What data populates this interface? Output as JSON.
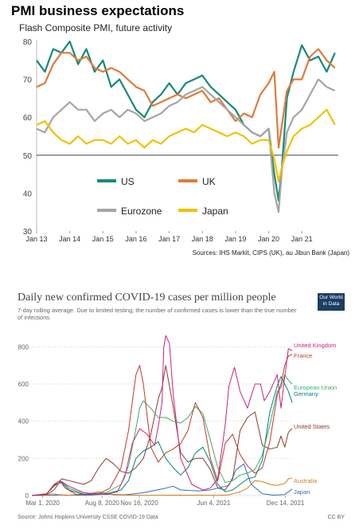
{
  "chart_data": [
    {
      "type": "line",
      "title": "PMI business expectations",
      "subtitle": "Flash Composite PMI, future activity",
      "ylim": [
        30,
        80
      ],
      "yticks": [
        30,
        40,
        50,
        60,
        70,
        80
      ],
      "xlim": [
        2013.0,
        2022.1
      ],
      "xtick_labels": [
        "Jan 13",
        "Jan 14",
        "Jan 15",
        "Jan 16",
        "Jan 17",
        "Jan 18",
        "Jan 19",
        "Jan 20",
        "Jan 21"
      ],
      "reference_line": 50,
      "grid": false,
      "legend_placement": "inside-bottom-left",
      "source": "Sources: IHS Markit, CIPS (UK), au Jibun Bank (Japan)",
      "series": [
        {
          "name": "US",
          "color": "#16897a",
          "x": [
            2013.0,
            2013.25,
            2013.5,
            2013.75,
            2014.0,
            2014.25,
            2014.5,
            2014.75,
            2015.0,
            2015.25,
            2015.5,
            2015.75,
            2016.0,
            2016.25,
            2016.5,
            2016.75,
            2017.0,
            2017.25,
            2017.5,
            2017.75,
            2018.0,
            2018.25,
            2018.5,
            2018.75,
            2019.0,
            2019.25,
            2019.5,
            2019.75,
            2020.0,
            2020.17,
            2020.3,
            2020.4,
            2020.55,
            2020.75,
            2021.0,
            2021.25,
            2021.5,
            2021.75,
            2022.0
          ],
          "y": [
            75,
            72,
            78,
            77,
            80,
            74,
            78,
            72,
            75,
            68,
            70,
            66,
            62,
            60,
            64,
            66,
            69,
            66,
            69,
            70,
            71,
            68,
            66,
            64,
            62,
            58,
            56,
            55,
            57,
            45,
            38,
            47,
            65,
            72,
            79,
            75,
            76,
            72,
            77
          ]
        },
        {
          "name": "UK",
          "color": "#e07b39",
          "x": [
            2013.0,
            2013.25,
            2013.5,
            2013.75,
            2014.0,
            2014.25,
            2014.5,
            2014.75,
            2015.0,
            2015.25,
            2015.5,
            2015.75,
            2016.0,
            2016.25,
            2016.5,
            2016.75,
            2017.0,
            2017.25,
            2017.5,
            2017.75,
            2018.0,
            2018.25,
            2018.5,
            2018.75,
            2019.0,
            2019.25,
            2019.5,
            2019.75,
            2020.0,
            2020.17,
            2020.3,
            2020.4,
            2020.55,
            2020.75,
            2021.0,
            2021.25,
            2021.5,
            2021.75,
            2022.0
          ],
          "y": [
            68,
            69,
            74,
            77,
            77,
            75,
            76,
            73,
            72,
            73,
            72,
            70,
            68,
            67,
            63,
            64,
            65,
            66,
            65,
            66,
            67,
            64,
            65,
            62,
            59,
            61,
            60,
            66,
            69,
            72,
            52,
            58,
            67,
            70,
            70,
            76,
            78,
            75,
            73
          ]
        },
        {
          "name": "Eurozone",
          "color": "#a5a5a5",
          "x": [
            2013.0,
            2013.25,
            2013.5,
            2013.75,
            2014.0,
            2014.25,
            2014.5,
            2014.75,
            2015.0,
            2015.25,
            2015.5,
            2015.75,
            2016.0,
            2016.25,
            2016.5,
            2016.75,
            2017.0,
            2017.25,
            2017.5,
            2017.75,
            2018.0,
            2018.25,
            2018.5,
            2018.75,
            2019.0,
            2019.25,
            2019.5,
            2019.75,
            2020.0,
            2020.17,
            2020.3,
            2020.4,
            2020.55,
            2020.75,
            2021.0,
            2021.25,
            2021.5,
            2021.75,
            2022.0
          ],
          "y": [
            57,
            56,
            60,
            62,
            64,
            62,
            62,
            59,
            61,
            62,
            60,
            62,
            61,
            59,
            60,
            61,
            63,
            64,
            66,
            67,
            68,
            66,
            64,
            62,
            60,
            58,
            56,
            55,
            57,
            40,
            35,
            46,
            56,
            60,
            62,
            66,
            70,
            68,
            67
          ]
        },
        {
          "name": "Japan",
          "color": "#f2c100",
          "x": [
            2013.0,
            2013.25,
            2013.5,
            2013.75,
            2014.0,
            2014.25,
            2014.5,
            2014.75,
            2015.0,
            2015.25,
            2015.5,
            2015.75,
            2016.0,
            2016.25,
            2016.5,
            2016.75,
            2017.0,
            2017.25,
            2017.5,
            2017.75,
            2018.0,
            2018.25,
            2018.5,
            2018.75,
            2019.0,
            2019.25,
            2019.5,
            2019.75,
            2020.0,
            2020.17,
            2020.3,
            2020.4,
            2020.55,
            2020.75,
            2021.0,
            2021.25,
            2021.5,
            2021.75,
            2022.0
          ],
          "y": [
            58,
            59,
            56,
            54,
            53,
            55,
            53,
            54,
            54,
            53,
            55,
            53,
            54,
            52,
            54,
            53,
            55,
            56,
            57,
            56,
            58,
            57,
            56,
            55,
            56,
            55,
            53,
            54,
            54,
            49,
            43,
            47,
            51,
            55,
            57,
            58,
            60,
            62,
            58
          ]
        }
      ]
    },
    {
      "type": "line",
      "title": "Daily new confirmed COVID-19 cases per million people",
      "subtitle": "7-day rolling average. Due to limited testing, the number of confirmed cases is lower than the true number of infections.",
      "ylim": [
        0,
        900
      ],
      "yticks": [
        0,
        200,
        400,
        600,
        800
      ],
      "xlim": [
        0,
        700
      ],
      "x_unit": "days since 1 Feb 2020",
      "xtick_positions": [
        29,
        189,
        289,
        489,
        682
      ],
      "xtick_labels": [
        "Mar 1, 2020",
        "Aug 8, 2020",
        "Nov 16, 2020",
        "Jun 4, 2021",
        "Dec 14, 2021"
      ],
      "grid": true,
      "source": "Source: Johns Hopkins University CSSE COVID-19 Data",
      "license": "CC BY",
      "logo": "Our World in Data",
      "series": [
        {
          "name": "United Kingdom",
          "color": "#c8247a",
          "x": [
            0,
            40,
            60,
            80,
            100,
            140,
            200,
            230,
            250,
            270,
            290,
            310,
            330,
            340,
            350,
            355,
            360,
            370,
            380,
            400,
            430,
            460,
            480,
            500,
            520,
            530,
            545,
            560,
            580,
            600,
            615,
            625,
            640,
            660,
            670,
            680,
            690,
            700
          ],
          "y": [
            0,
            10,
            55,
            75,
            50,
            15,
            5,
            20,
            100,
            280,
            360,
            330,
            270,
            370,
            500,
            800,
            860,
            820,
            550,
            200,
            60,
            30,
            40,
            90,
            380,
            590,
            690,
            560,
            470,
            600,
            600,
            510,
            560,
            650,
            470,
            640,
            790,
            780
          ]
        },
        {
          "name": "France",
          "color": "#c0392b",
          "x": [
            0,
            40,
            60,
            75,
            90,
            120,
            180,
            210,
            240,
            260,
            270,
            280,
            290,
            300,
            320,
            340,
            360,
            380,
            400,
            420,
            430,
            440,
            460,
            480,
            500,
            520,
            540,
            560,
            580,
            600,
            620,
            640,
            660,
            670,
            680,
            690,
            700
          ],
          "y": [
            0,
            10,
            60,
            80,
            40,
            5,
            10,
            40,
            150,
            350,
            500,
            650,
            700,
            600,
            260,
            180,
            230,
            250,
            280,
            350,
            430,
            500,
            420,
            200,
            80,
            280,
            330,
            220,
            160,
            120,
            150,
            290,
            540,
            600,
            700,
            750,
            760
          ]
        },
        {
          "name": "European Union",
          "color": "#3bab6c",
          "x": [
            0,
            40,
            60,
            80,
            100,
            140,
            200,
            240,
            260,
            280,
            290,
            300,
            320,
            340,
            360,
            380,
            400,
            420,
            440,
            460,
            480,
            500,
            520,
            540,
            560,
            580,
            600,
            620,
            640,
            660,
            670,
            680,
            690,
            700
          ],
          "y": [
            0,
            10,
            50,
            75,
            40,
            8,
            15,
            60,
            160,
            360,
            470,
            510,
            470,
            420,
            420,
            400,
            390,
            420,
            480,
            440,
            300,
            150,
            70,
            80,
            110,
            120,
            140,
            220,
            380,
            560,
            580,
            650,
            620,
            600
          ]
        },
        {
          "name": "Germany",
          "color": "#00847e",
          "x": [
            0,
            40,
            60,
            80,
            100,
            140,
            200,
            240,
            260,
            280,
            300,
            320,
            340,
            360,
            380,
            400,
            420,
            440,
            460,
            480,
            500,
            520,
            540,
            560,
            580,
            600,
            620,
            640,
            660,
            670,
            680,
            690,
            700
          ],
          "y": [
            0,
            8,
            60,
            70,
            30,
            5,
            10,
            30,
            80,
            200,
            240,
            260,
            290,
            200,
            150,
            110,
            150,
            230,
            260,
            180,
            60,
            20,
            30,
            60,
            90,
            100,
            190,
            450,
            590,
            640,
            600,
            560,
            500
          ]
        },
        {
          "name": "United States",
          "color": "#8c3a2f",
          "x": [
            0,
            40,
            60,
            80,
            100,
            140,
            160,
            180,
            200,
            220,
            240,
            260,
            280,
            300,
            320,
            340,
            350,
            360,
            380,
            400,
            420,
            440,
            460,
            480,
            500,
            520,
            540,
            560,
            580,
            600,
            620,
            640,
            660,
            670,
            680,
            690,
            700
          ],
          "y": [
            0,
            5,
            30,
            90,
            80,
            60,
            80,
            150,
            200,
            170,
            130,
            120,
            150,
            200,
            330,
            520,
            580,
            700,
            480,
            230,
            180,
            200,
            200,
            140,
            40,
            30,
            90,
            350,
            420,
            450,
            270,
            250,
            260,
            320,
            260,
            340,
            360
          ]
        },
        {
          "name": "Australia",
          "color": "#d67b1a",
          "x": [
            0,
            40,
            55,
            70,
            90,
            150,
            180,
            200,
            220,
            300,
            400,
            500,
            530,
            560,
            580,
            600,
            620,
            640,
            660,
            670,
            680,
            690,
            700
          ],
          "y": [
            0,
            2,
            10,
            5,
            1,
            8,
            20,
            12,
            3,
            1,
            2,
            1,
            4,
            20,
            40,
            80,
            75,
            60,
            55,
            60,
            65,
            90,
            95
          ]
        },
        {
          "name": "Japan",
          "color": "#2e6fbc",
          "x": [
            0,
            40,
            60,
            80,
            100,
            150,
            180,
            200,
            250,
            300,
            360,
            380,
            400,
            450,
            480,
            500,
            530,
            550,
            570,
            590,
            620,
            650,
            680,
            700
          ],
          "y": [
            0,
            1,
            2,
            3,
            2,
            1,
            5,
            7,
            4,
            15,
            40,
            50,
            30,
            25,
            30,
            40,
            55,
            140,
            170,
            60,
            10,
            2,
            5,
            35
          ]
        }
      ]
    }
  ],
  "covid_labels": {
    "uk": "United Kingdom",
    "france": "France",
    "eu": "European Union",
    "germany": "Germany",
    "us": "United States",
    "australia": "Australia",
    "japan": "Japan"
  }
}
